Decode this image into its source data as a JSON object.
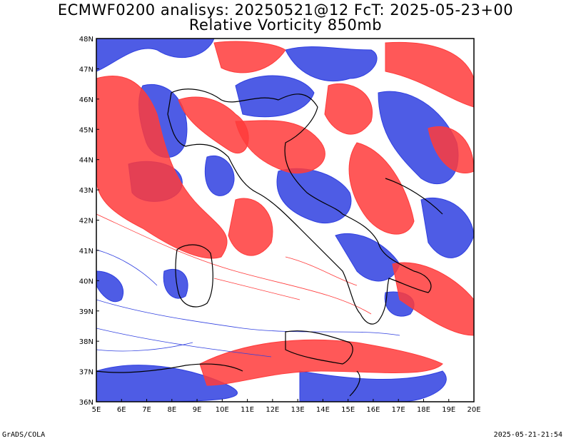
{
  "title": {
    "line1": "ECMWF0200 analisys: 20250521@12 FcT: 2025-05-23+00",
    "line2": "Relative Vorticity 850mb"
  },
  "axes": {
    "lat_labels": [
      "48N",
      "47N",
      "46N",
      "45N",
      "44N",
      "43N",
      "42N",
      "41N",
      "40N",
      "39N",
      "38N",
      "37N",
      "36N"
    ],
    "lon_labels": [
      "5E",
      "6E",
      "7E",
      "8E",
      "9E",
      "10E",
      "11E",
      "12E",
      "13E",
      "14E",
      "15E",
      "16E",
      "17E",
      "18E",
      "19E",
      "20E"
    ],
    "lon_range": [
      5,
      20
    ],
    "lat_range": [
      36,
      48
    ]
  },
  "colors": {
    "positive": "#ff3b3b",
    "negative": "#2f3fe0",
    "coastline": "#000000"
  },
  "footer": {
    "credit": "GrADS/COLA",
    "timestamp": "2025-05-21-21:54"
  }
}
